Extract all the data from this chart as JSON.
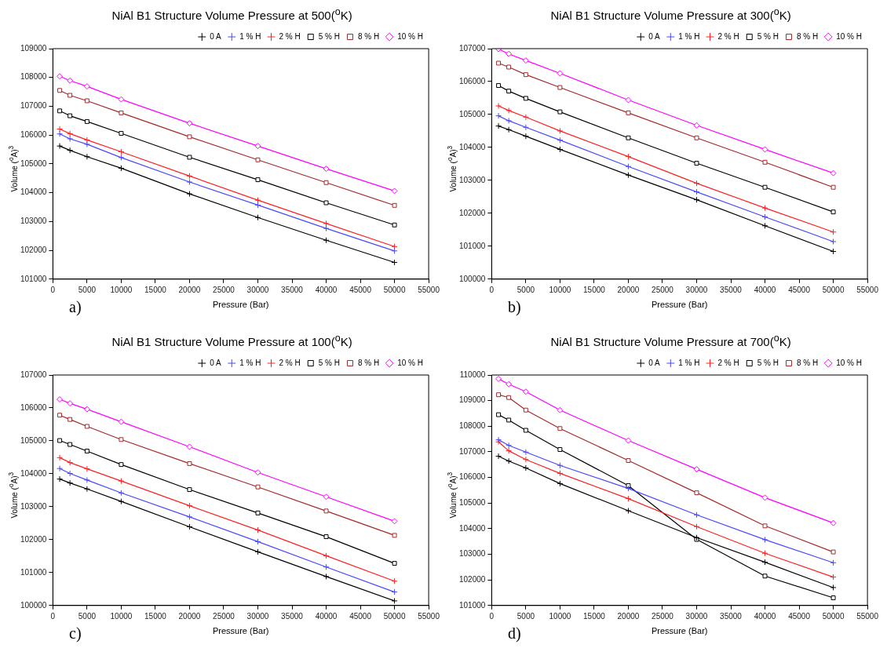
{
  "chart_data": [
    {
      "type": "line",
      "title": "NiAl B1 Structure Volume Pressure at 500($^{o}$K)",
      "xlabel": "Pressure (Bar)",
      "ylabel": "Volume ($^{o}$A)$^{3}$",
      "annotations": [
        "a)"
      ],
      "legend": "top right",
      "x": [
        1000,
        2500,
        5000,
        10000,
        20000,
        30000,
        40000,
        50000
      ],
      "xlim": [
        0,
        55000
      ],
      "xticks": [
        0,
        5000,
        10000,
        15000,
        20000,
        25000,
        30000,
        35000,
        40000,
        45000,
        50000,
        55000
      ],
      "ylim": [
        101000,
        109000
      ],
      "yticks": [
        101000,
        102000,
        103000,
        104000,
        105000,
        106000,
        107000,
        108000,
        109000
      ],
      "series": [
        {
          "name": "0 A",
          "color": "#000000",
          "marker": "cross",
          "values": [
            105620,
            105470,
            105250,
            104850,
            103960,
            103140,
            102350,
            101580
          ]
        },
        {
          "name": "1 % H",
          "color": "#4848ff",
          "marker": "cross",
          "values": [
            106040,
            105870,
            105680,
            105220,
            104370,
            103570,
            102760,
            101980
          ]
        },
        {
          "name": "2 % H",
          "color": "#ff2020",
          "marker": "cross",
          "values": [
            106210,
            106050,
            105830,
            105420,
            104580,
            103740,
            102930,
            102130
          ]
        },
        {
          "name": "5 % H",
          "color": "#000000",
          "marker": "square",
          "values": [
            106840,
            106670,
            106470,
            106060,
            105230,
            104450,
            103650,
            102880
          ]
        },
        {
          "name": "8 % H",
          "color": "#a52a2a",
          "marker": "square",
          "values": [
            107550,
            107380,
            107190,
            106770,
            105940,
            105140,
            104350,
            103560
          ]
        },
        {
          "name": "10 % H",
          "color": "#ff00ff",
          "marker": "diamond",
          "values": [
            108040,
            107890,
            107690,
            107240,
            106410,
            105620,
            104830,
            104060
          ]
        }
      ]
    },
    {
      "type": "line",
      "title": "NiAl B1 Structure Volume Pressure at 300($^{o}$K)",
      "xlabel": "Pressure (Bar)",
      "ylabel": "Volume ($^{o}$A)$^{3}$",
      "annotations": [
        "b)"
      ],
      "legend": "top right",
      "x": [
        1000,
        2500,
        5000,
        10000,
        20000,
        30000,
        40000,
        50000
      ],
      "xlim": [
        0,
        55000
      ],
      "xticks": [
        0,
        5000,
        10000,
        15000,
        20000,
        25000,
        30000,
        35000,
        40000,
        45000,
        50000,
        55000
      ],
      "ylim": [
        100000,
        107000
      ],
      "yticks": [
        100000,
        101000,
        102000,
        103000,
        104000,
        105000,
        106000,
        107000
      ],
      "series": [
        {
          "name": "0 A",
          "color": "#000000",
          "marker": "cross",
          "values": [
            104650,
            104540,
            104340,
            103940,
            103160,
            102410,
            101620,
            100840
          ]
        },
        {
          "name": "1 % H",
          "color": "#4848ff",
          "marker": "cross",
          "values": [
            104960,
            104810,
            104610,
            104220,
            103420,
            102650,
            101890,
            101140
          ]
        },
        {
          "name": "2 % H",
          "color": "#ff2020",
          "marker": "cross",
          "values": [
            105260,
            105120,
            104920,
            104500,
            103720,
            102910,
            102160,
            101430
          ]
        },
        {
          "name": "5 % H",
          "color": "#000000",
          "marker": "square",
          "values": [
            105880,
            105710,
            105490,
            105080,
            104290,
            103520,
            102790,
            102040
          ]
        },
        {
          "name": "8 % H",
          "color": "#a52a2a",
          "marker": "square",
          "values": [
            106560,
            106440,
            106210,
            105820,
            105050,
            104290,
            103550,
            102790
          ]
        },
        {
          "name": "10 % H",
          "color": "#ff00ff",
          "marker": "diamond",
          "values": [
            106990,
            106840,
            106640,
            106250,
            105440,
            104670,
            103940,
            103220
          ]
        }
      ]
    },
    {
      "type": "line",
      "title": "NiAl B1 Structure Volume Pressure at 100($^{o}$K)",
      "xlabel": "Pressure (Bar)",
      "ylabel": "Volume ($^{o}$A)$^{3}$",
      "annotations": [
        "c)"
      ],
      "legend": "top right",
      "x": [
        1000,
        2500,
        5000,
        10000,
        20000,
        30000,
        40000,
        50000
      ],
      "xlim": [
        0,
        55000
      ],
      "xticks": [
        0,
        5000,
        10000,
        15000,
        20000,
        25000,
        30000,
        35000,
        40000,
        45000,
        50000,
        55000
      ],
      "ylim": [
        100000,
        107000
      ],
      "yticks": [
        100000,
        101000,
        102000,
        103000,
        104000,
        105000,
        106000,
        107000
      ],
      "series": [
        {
          "name": "0 A",
          "color": "#000000",
          "marker": "cross",
          "values": [
            103840,
            103720,
            103540,
            103160,
            102390,
            101630,
            100880,
            100140
          ]
        },
        {
          "name": "1 % H",
          "color": "#4848ff",
          "marker": "cross",
          "values": [
            104160,
            104010,
            103810,
            103420,
            102690,
            101940,
            101170,
            100410
          ]
        },
        {
          "name": "2 % H",
          "color": "#ff2020",
          "marker": "cross",
          "values": [
            104490,
            104340,
            104150,
            103780,
            103030,
            102290,
            101510,
            100740
          ]
        },
        {
          "name": "5 % H",
          "color": "#000000",
          "marker": "square",
          "values": [
            105010,
            104890,
            104690,
            104280,
            103520,
            102810,
            102090,
            101280
          ]
        },
        {
          "name": "8 % H",
          "color": "#a52a2a",
          "marker": "square",
          "values": [
            105780,
            105650,
            105440,
            105040,
            104310,
            103600,
            102870,
            102130
          ]
        },
        {
          "name": "10 % H",
          "color": "#ff00ff",
          "marker": "diamond",
          "values": [
            106260,
            106140,
            105960,
            105580,
            104820,
            104040,
            103300,
            102560
          ]
        }
      ]
    },
    {
      "type": "line",
      "title": "NiAl B1 Structure Volume Pressure at 700($^{o}$K)",
      "xlabel": "Pressure (Bar)",
      "ylabel": "Volume ($^{o}$A)$^{3}$",
      "annotations": [
        "d)"
      ],
      "legend": "top right",
      "x": [
        1000,
        2500,
        5000,
        10000,
        20000,
        30000,
        40000,
        50000
      ],
      "xlim": [
        0,
        55000
      ],
      "xticks": [
        0,
        5000,
        10000,
        15000,
        20000,
        25000,
        30000,
        35000,
        40000,
        45000,
        50000,
        55000
      ],
      "ylim": [
        101000,
        110000
      ],
      "yticks": [
        101000,
        102000,
        103000,
        104000,
        105000,
        106000,
        107000,
        108000,
        109000,
        110000
      ],
      "series": [
        {
          "name": "0 A",
          "color": "#000000",
          "marker": "cross",
          "values": [
            106830,
            106640,
            106370,
            105760,
            104700,
            103650,
            102690,
            101700
          ]
        },
        {
          "name": "1 % H",
          "color": "#4848ff",
          "marker": "cross",
          "values": [
            107470,
            107250,
            106990,
            106470,
            105570,
            104540,
            103570,
            102670
          ]
        },
        {
          "name": "2 % H",
          "color": "#ff2020",
          "marker": "cross",
          "values": [
            107390,
            107040,
            106700,
            106160,
            105170,
            104080,
            103040,
            102110
          ]
        },
        {
          "name": "5 % H",
          "color": "#000000",
          "marker": "square",
          "values": [
            108450,
            108240,
            107840,
            107090,
            105680,
            103580,
            102150,
            101300
          ]
        },
        {
          "name": "8 % H",
          "color": "#a52a2a",
          "marker": "square",
          "values": [
            109230,
            109120,
            108630,
            107910,
            106660,
            105400,
            104110,
            103090
          ]
        },
        {
          "name": "10 % H",
          "color": "#ff00ff",
          "marker": "diamond",
          "values": [
            109850,
            109640,
            109350,
            108630,
            107440,
            106320,
            105210,
            104220
          ]
        }
      ]
    }
  ]
}
